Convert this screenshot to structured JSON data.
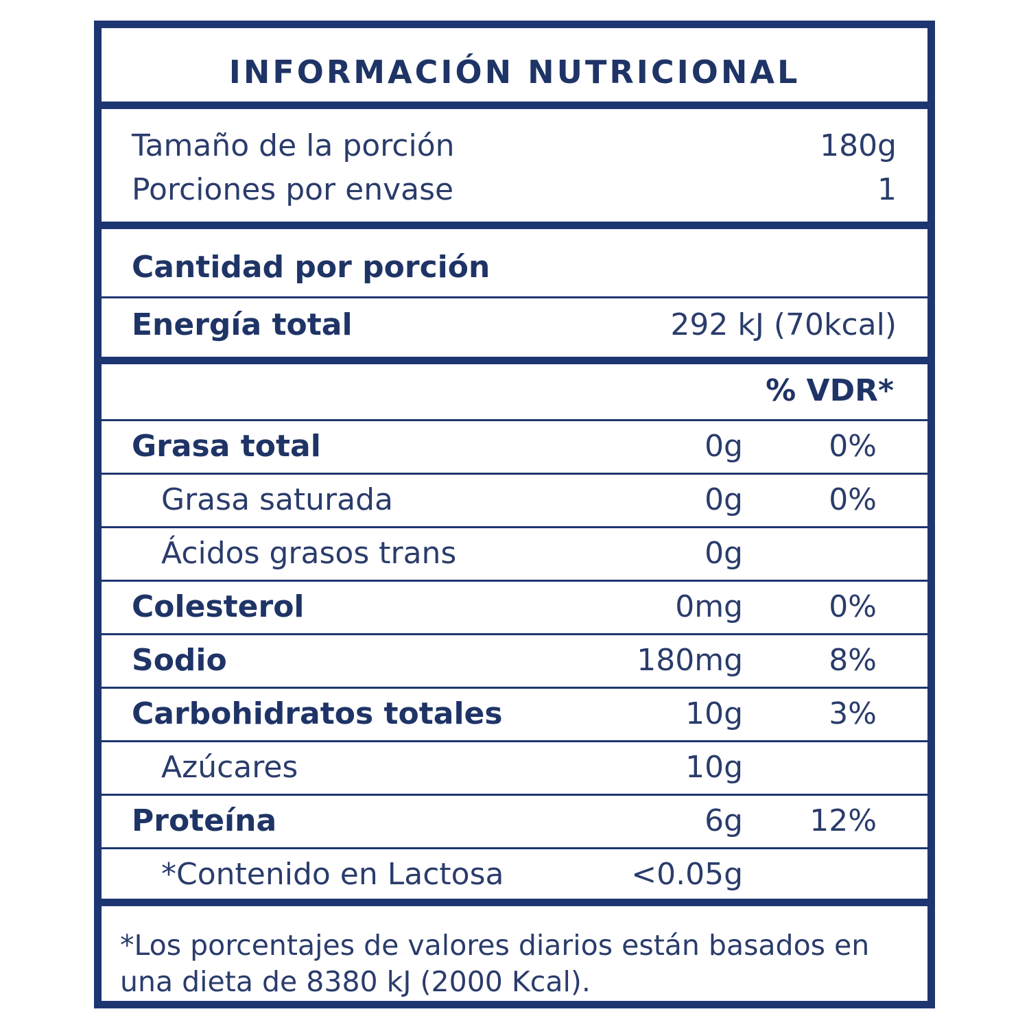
{
  "title": "INFORMACIÓN NUTRICIONAL",
  "serving": [
    {
      "label": "Tamaño de la porción",
      "value": "180g"
    },
    {
      "label": "Porciones por envase",
      "value": "1"
    }
  ],
  "amount_header": "Cantidad por porción",
  "energy": {
    "label": "Energía total",
    "value": "292 kJ (70kcal)"
  },
  "dv_header": "% VDR*",
  "nutrients": [
    {
      "name": "Grasa total",
      "amount": "0g",
      "dv": "0%",
      "sub": [
        {
          "name": "Grasa saturada",
          "amount": "0g",
          "dv": "0%"
        },
        {
          "name": "Ácidos grasos trans",
          "amount": "0g"
        }
      ]
    },
    {
      "name": "Colesterol",
      "amount": "0mg",
      "dv": "0%"
    },
    {
      "name": "Sodio",
      "amount": "180mg",
      "dv": "8%"
    },
    {
      "name": "Carbohidratos totales",
      "amount": "10g",
      "dv": "3%",
      "sub": [
        {
          "name": "Azúcares",
          "amount": "10g"
        }
      ]
    },
    {
      "name": "Proteína",
      "amount": "6g",
      "dv": "12%",
      "sub": [
        {
          "name": "*Contenido en Lactosa",
          "amount": "<0.05g"
        }
      ]
    }
  ],
  "footnote": "*Los porcentajes de valores diarios están basados en una dieta de 8380 kJ (2000 Kcal)."
}
